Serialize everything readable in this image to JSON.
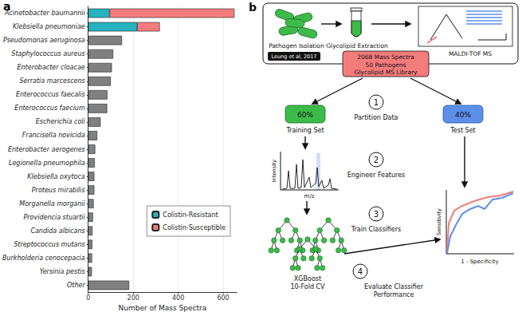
{
  "panel_labels": [
    "a",
    "b"
  ],
  "chart_data": {
    "type": "bar",
    "orientation": "horizontal",
    "stacked": true,
    "categories": [
      "Acinetobacter baumannii",
      "Klebsiella pneumoniae",
      "Pseudomonas aeruginosa",
      "Staphylococcus aureus",
      "Enterobacter cloacae",
      "Serratia marcescens",
      "Enterococcus faecalis",
      "Enterococcus faecium",
      "Escherichia coli",
      "Francisella novicida",
      "Enterobacter aerogenes",
      "Legionella pneumophila",
      "Klebsiella oxytoca",
      "Proteus mirabilis",
      "Morganella morganii",
      "Providencia stuartii",
      "Candida albicans",
      "Streptococcus mutans",
      "Burkholderia cenocepacia",
      "Yersinia pestis",
      "Other"
    ],
    "series": [
      {
        "name": "Colistin-Resistant",
        "color": "#26b3bd",
        "values": [
          95,
          218,
          null,
          null,
          null,
          null,
          null,
          null,
          null,
          null,
          null,
          null,
          null,
          null,
          null,
          null,
          null,
          null,
          null,
          null,
          null
        ]
      },
      {
        "name": "Colistin-Susceptible",
        "color": "#f47c7c",
        "values": [
          555,
          100,
          null,
          null,
          null,
          null,
          null,
          null,
          null,
          null,
          null,
          null,
          null,
          null,
          null,
          null,
          null,
          null,
          null,
          null,
          null
        ]
      },
      {
        "color": "#808080",
        "values": [
          null,
          null,
          150,
          111,
          105,
          100,
          85,
          84,
          55,
          40,
          31,
          29,
          27,
          27,
          24,
          21,
          19,
          18,
          17,
          16,
          182
        ]
      }
    ],
    "xlabel": "Number of Mass Spectra",
    "xlim": [
      0,
      660
    ],
    "xticks": [
      0,
      200,
      400,
      600
    ],
    "grid": true,
    "legend": "lower right"
  },
  "diagram": {
    "steps_top": {
      "isolation": "Pathogen Isolation",
      "extraction": "Glycolipid Extraction",
      "ms": "MALDI-TOF MS"
    },
    "citation": "Leung et al, 2017",
    "library": [
      "2068 Mass Spectra",
      "50 Pathogens",
      "Glycolipid MS Library"
    ],
    "training": {
      "percent": "60%",
      "label": "Training Set"
    },
    "test": {
      "percent": "40%",
      "label": "Test Set"
    },
    "spectrum_axes": {
      "y": "Intensity",
      "x": "m/z"
    },
    "classifier": [
      "XGBoost",
      "10-Fold CV"
    ],
    "roc_axes": {
      "y": "Sensitivity",
      "x": "1 - Specificity"
    },
    "stages": [
      {
        "number": "1",
        "label": [
          "Partition Data"
        ]
      },
      {
        "number": "2",
        "label": [
          "Engineer Features"
        ]
      },
      {
        "number": "3",
        "label": [
          "Train Classifiers"
        ]
      },
      {
        "number": "4",
        "label": [
          "Evaluate Classifier",
          "Performance"
        ]
      }
    ]
  }
}
